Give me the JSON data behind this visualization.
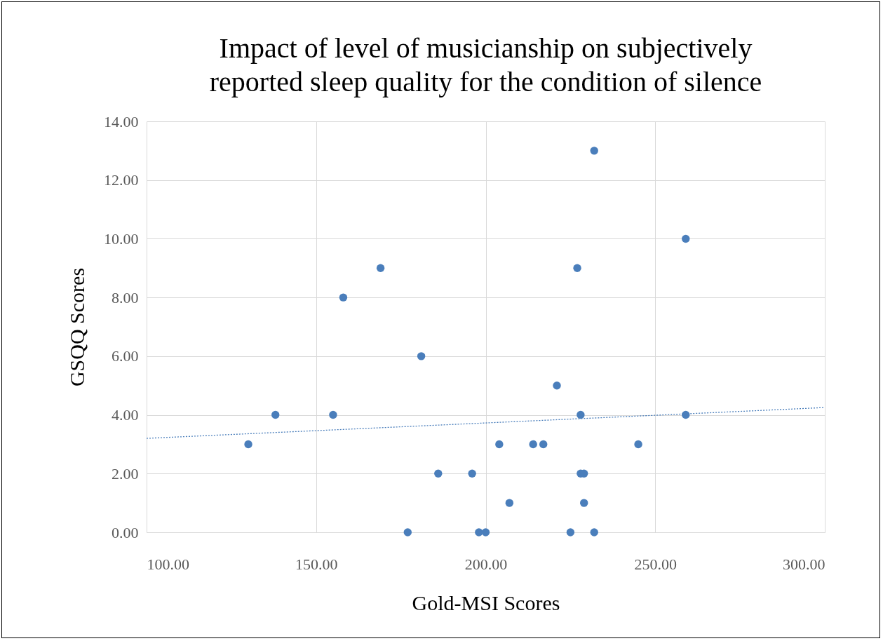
{
  "chart_data": {
    "type": "scatter",
    "title": "Impact of level of musicianship on subjectively reported sleep quality for the condition of silence",
    "xlabel": "Gold-MSI Scores",
    "ylabel": "GSQQ Scores",
    "x": [
      130,
      138,
      155,
      158,
      169,
      177,
      181,
      186,
      196,
      198,
      200,
      204,
      207,
      214,
      217,
      221,
      225,
      227,
      228,
      228,
      229,
      229,
      232,
      232,
      245,
      259,
      259
    ],
    "series": [
      {
        "color": "#4a7ebb",
        "marker": "circle",
        "values": [
          3,
          4,
          4,
          8,
          9,
          0,
          6,
          2,
          2,
          0,
          0,
          3,
          1,
          3,
          3,
          5,
          0,
          9,
          4,
          2,
          2,
          1,
          13,
          0,
          3,
          10,
          4
        ]
      },
      {
        "type": "line",
        "color": "#4a7ebb",
        "marker": "none",
        "line_style": "dotted",
        "x": [
          100,
          300
        ],
        "values": [
          3.2,
          4.25
        ]
      }
    ],
    "xlim": [
      100,
      300
    ],
    "xticks": [
      {
        "value": 100,
        "label": "100.00"
      },
      {
        "value": 150,
        "label": "150.00"
      },
      {
        "value": 200,
        "label": "200.00"
      },
      {
        "value": 250,
        "label": "250.00"
      },
      {
        "value": 300,
        "label": "300.00"
      }
    ],
    "ylim": [
      0,
      14
    ],
    "yticks": [
      {
        "value": 0,
        "label": "0.00"
      },
      {
        "value": 2,
        "label": "2.00"
      },
      {
        "value": 4,
        "label": "4.00"
      },
      {
        "value": 6,
        "label": "6.00"
      },
      {
        "value": 8,
        "label": "8.00"
      },
      {
        "value": 10,
        "label": "10.00"
      },
      {
        "value": 12,
        "label": "12.00"
      },
      {
        "value": 14,
        "label": "14.00"
      }
    ],
    "grid": true
  }
}
